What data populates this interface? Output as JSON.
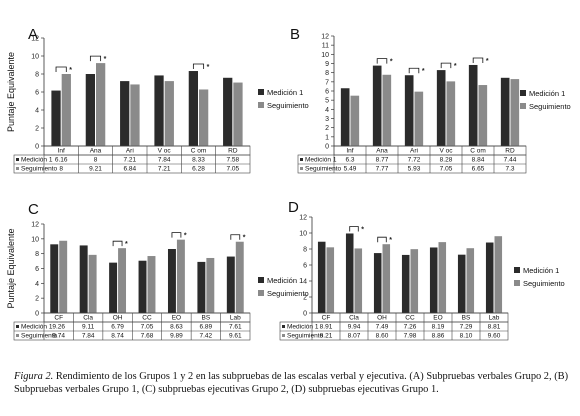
{
  "caption": {
    "label": "Figura 2.",
    "text": " Rendimiento de los Grupos 1 y 2 en las subpruebas de las escalas verbal y ejecutiva. (A) Subpruebas verbales Grupo 2, (B) Subpruebas verbales Grupo 1, (C) subpruebas ejecutivas Grupo 2, (D) subpruebas ejecutivas Grupo 1."
  },
  "colors": {
    "series1": "#2b2b2b",
    "series2": "#8a8a8a"
  },
  "chart_data": [
    {
      "type": "bar",
      "panel": "A",
      "ylabel": "Puntaje Equivalente",
      "ylim": [
        0,
        12
      ],
      "yticks": [
        0,
        2,
        4,
        6,
        8,
        10,
        12
      ],
      "legend_position": "right",
      "categories": [
        "Inf",
        "Ana",
        "Ari",
        "V oc",
        "C om",
        "RD"
      ],
      "series": [
        {
          "name": "Medición 1",
          "values": [
            6.16,
            8,
            7.21,
            7.84,
            8.33,
            7.58
          ],
          "labels": [
            "6.16",
            "8",
            "7.21",
            "7.84",
            "8.33",
            "7.58"
          ]
        },
        {
          "name": "Seguimiento",
          "values": [
            8,
            9.21,
            6.84,
            7.21,
            6.28,
            7.05
          ],
          "labels": [
            "8",
            "9.21",
            "6.84",
            "7.21",
            "6.28",
            "7.05"
          ]
        }
      ],
      "significant": [
        0,
        1,
        4
      ]
    },
    {
      "type": "bar",
      "panel": "B",
      "ylabel": "",
      "ylim": [
        0,
        12
      ],
      "yticks": [
        0,
        1,
        2,
        3,
        4,
        5,
        6,
        7,
        8,
        9,
        10,
        11,
        12
      ],
      "legend_position": "right",
      "categories": [
        "Inf",
        "Ana",
        "Ari",
        "V oc",
        "C om",
        "RD"
      ],
      "series": [
        {
          "name": "Medición 1",
          "values": [
            6.3,
            8.77,
            7.72,
            8.28,
            8.84,
            7.44
          ],
          "labels": [
            "6.3",
            "8.77",
            "7.72",
            "8.28",
            "8.84",
            "7.44"
          ]
        },
        {
          "name": "Seguimiento",
          "values": [
            5.49,
            7.77,
            5.93,
            7.05,
            6.65,
            7.3
          ],
          "labels": [
            "5.49",
            "7.77",
            "5.93",
            "7.05",
            "6.65",
            "7.3"
          ]
        }
      ],
      "significant": [
        1,
        2,
        3,
        4
      ]
    },
    {
      "type": "bar",
      "panel": "C",
      "ylabel": "Puntaje Equivalente",
      "ylim": [
        0,
        12
      ],
      "yticks": [
        0,
        2,
        4,
        6,
        8,
        10,
        12
      ],
      "legend_position": "right",
      "categories": [
        "CF",
        "Cla",
        "OH",
        "CC",
        "EO",
        "BS",
        "Lab"
      ],
      "series": [
        {
          "name": "Medición 1",
          "values": [
            9.26,
            9.11,
            6.79,
            7.05,
            8.63,
            6.89,
            7.61
          ],
          "labels": [
            "9.26",
            "9.11",
            "6.79",
            "7.05",
            "8.63",
            "6.89",
            "7.61"
          ]
        },
        {
          "name": "Seguimiento",
          "values": [
            9.74,
            7.84,
            8.74,
            7.68,
            9.89,
            7.42,
            9.61
          ],
          "labels": [
            "9.74",
            "7.84",
            "8.74",
            "7.68",
            "9.89",
            "7.42",
            "9.61"
          ]
        }
      ],
      "significant": [
        2,
        4,
        6
      ]
    },
    {
      "type": "bar",
      "panel": "D",
      "ylabel": "",
      "ylim": [
        0,
        12
      ],
      "yticks": [
        0,
        2,
        4,
        6,
        8,
        10,
        12
      ],
      "legend_position": "right",
      "categories": [
        "CF",
        "Cla",
        "OH",
        "CC",
        "EO",
        "BS",
        "Lab"
      ],
      "series": [
        {
          "name": "Medición 1",
          "values": [
            8.91,
            9.94,
            7.49,
            7.26,
            8.19,
            7.29,
            8.81
          ],
          "labels": [
            "8.91",
            "9.94",
            "7.49",
            "7.26",
            "8.19",
            "7.29",
            "8.81"
          ]
        },
        {
          "name": "Seguimiento",
          "values": [
            8.21,
            8.07,
            8.6,
            7.98,
            8.86,
            8.1,
            9.6
          ],
          "labels": [
            "8.21",
            "8.07",
            "8.60",
            "7.98",
            "8.86",
            "8.10",
            "9.60"
          ]
        }
      ],
      "significant": [
        1,
        2
      ]
    }
  ]
}
